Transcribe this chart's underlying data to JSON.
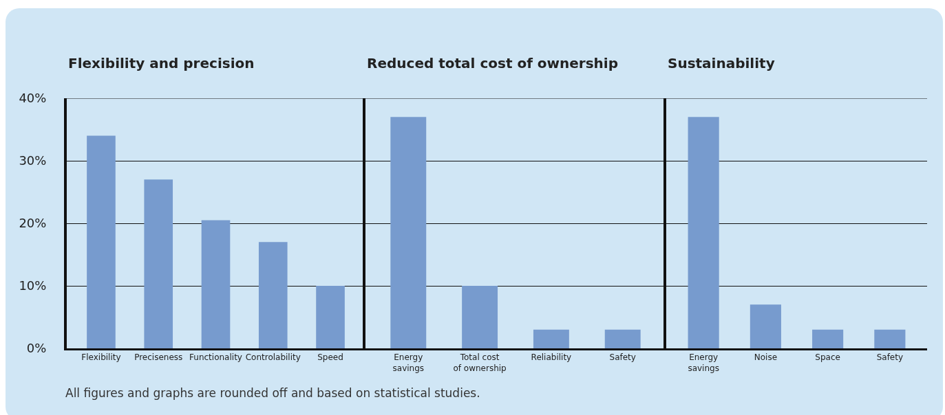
{
  "chart_data": [
    {
      "type": "bar",
      "title": "Flexibility and precision",
      "categories": [
        "Flexibility",
        "Preciseness",
        "Functionality",
        "Controlability",
        "Speed"
      ],
      "values": [
        34,
        27,
        20.5,
        17,
        10
      ],
      "color": "#779bce",
      "ylim": [
        0,
        40
      ],
      "yticks": [
        {
          "value": 0,
          "label": "0%"
        },
        {
          "value": 10,
          "label": "10%"
        },
        {
          "value": 20,
          "label": "20%"
        },
        {
          "value": 30,
          "label": "30%"
        },
        {
          "value": 40,
          "label": "40%"
        }
      ],
      "grid": "y",
      "annotations": [
        "All figures and graphs are rounded off and based on statistical studies."
      ]
    },
    {
      "type": "bar",
      "title": "Reduced total cost of ownership",
      "categories": [
        "Energy savings",
        "Total cost of ownership",
        "Reliability",
        "Safety"
      ],
      "values": [
        37,
        10,
        3,
        3
      ],
      "color": "#779bce",
      "ylim": [
        0,
        40
      ],
      "yticks": [
        {
          "value": 0,
          "label": null
        },
        {
          "value": 10,
          "label": null
        },
        {
          "value": 20,
          "label": null
        },
        {
          "value": 30,
          "label": null
        },
        {
          "value": 40,
          "label": null
        }
      ],
      "grid": "y",
      "tick_labels": "x"
    },
    {
      "type": "bar",
      "title": "Sustainability",
      "categories": [
        "Energy savings",
        "Noise",
        "Space",
        "Safety"
      ],
      "values": [
        37,
        7,
        3,
        3
      ],
      "color": "#779bce",
      "ylim": [
        0,
        40
      ],
      "yticks": [
        {
          "value": 0,
          "label": null
        },
        {
          "value": 10,
          "label": null
        },
        {
          "value": 20,
          "label": null
        },
        {
          "value": 30,
          "label": null
        },
        {
          "value": 40,
          "label": null
        }
      ],
      "grid": "y",
      "tick_labels": "x"
    }
  ]
}
